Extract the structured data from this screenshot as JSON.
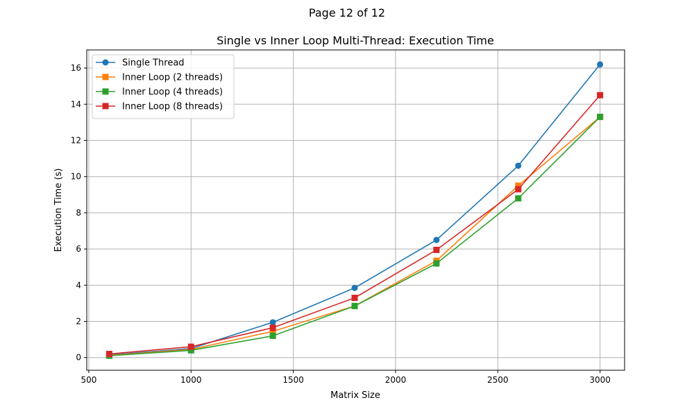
{
  "page": {
    "label": "Page 12 of 12"
  },
  "chart_data": {
    "type": "line",
    "title": "Single vs Inner Loop Multi-Thread: Execution Time",
    "xlabel": "Matrix Size",
    "ylabel": "Execution Time (s)",
    "xlim": [
      490,
      3120
    ],
    "ylim": [
      -0.7,
      17.0
    ],
    "xticks": [
      500,
      1000,
      1500,
      2000,
      2500,
      3000
    ],
    "yticks": [
      0,
      2,
      4,
      6,
      8,
      10,
      12,
      14,
      16
    ],
    "grid": true,
    "legend_position": "top-left",
    "x": [
      600,
      1000,
      1400,
      1800,
      2200,
      2600,
      3000
    ],
    "series": [
      {
        "name": "Single Thread",
        "color": "#1f77b4",
        "marker": "circle",
        "values": [
          0.15,
          0.5,
          1.95,
          3.85,
          6.5,
          10.6,
          16.2
        ]
      },
      {
        "name": "Inner Loop (2 threads)",
        "color": "#ff7f0e",
        "marker": "square",
        "values": [
          0.12,
          0.45,
          1.45,
          2.85,
          5.35,
          9.5,
          13.3
        ]
      },
      {
        "name": "Inner Loop (4 threads)",
        "color": "#2ca02c",
        "marker": "square",
        "values": [
          0.1,
          0.4,
          1.2,
          2.85,
          5.2,
          8.8,
          13.3
        ]
      },
      {
        "name": "Inner Loop (8 threads)",
        "color": "#d62728",
        "marker": "square",
        "values": [
          0.2,
          0.6,
          1.65,
          3.3,
          5.95,
          9.3,
          14.5
        ]
      }
    ]
  }
}
